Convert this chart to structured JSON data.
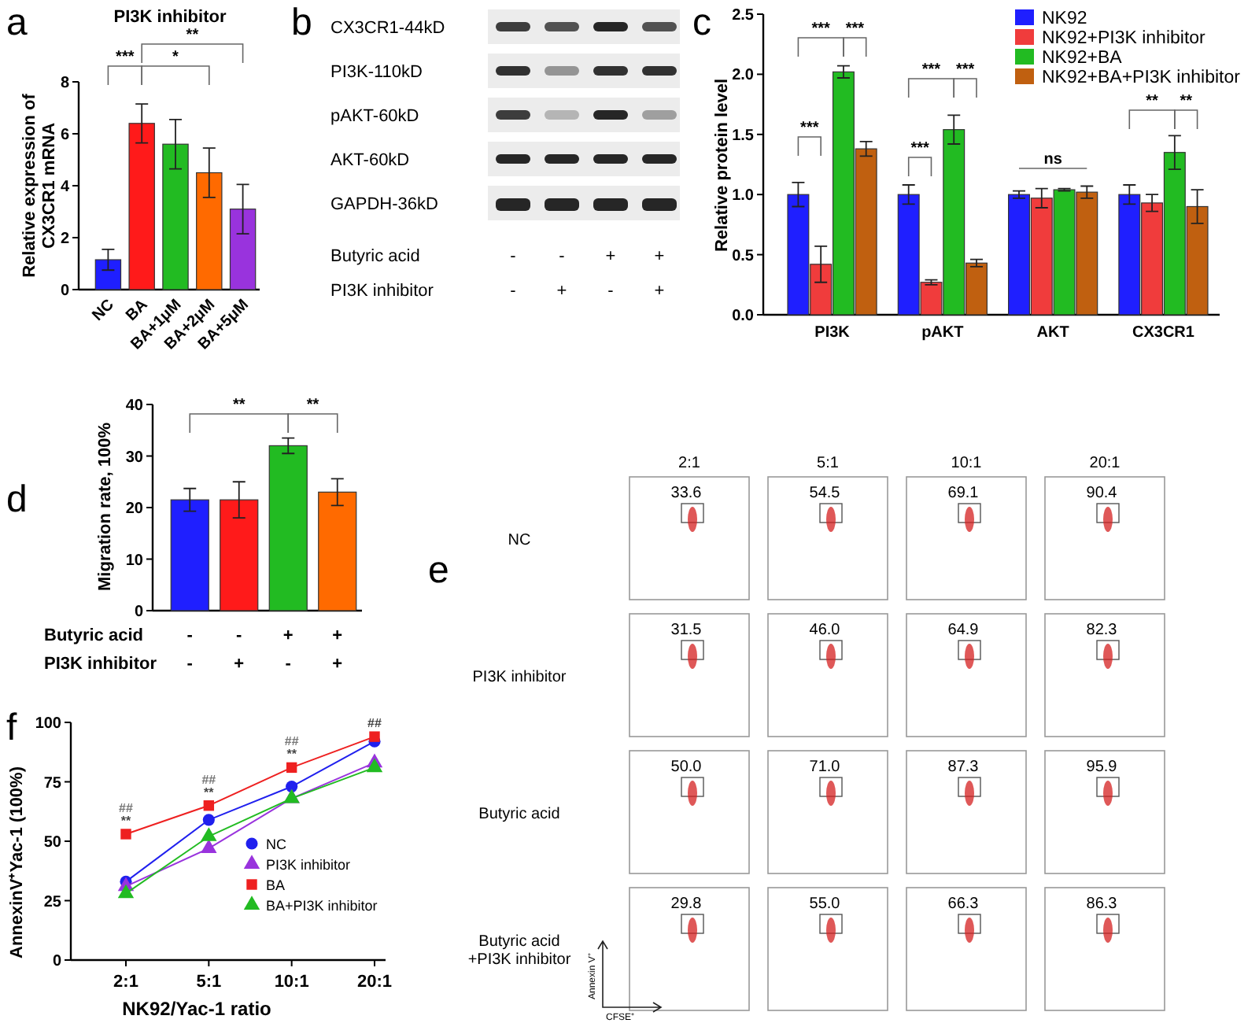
{
  "chart_data": [
    {
      "type": "bar",
      "title": "PI3K inhibitor",
      "ylabel": "Relative expression of\nCX3CR1 mRNA",
      "categories": [
        "NC",
        "BA",
        "BA+1μM",
        "BA+2μM",
        "BA+5μM"
      ],
      "values": [
        1.15,
        6.4,
        5.6,
        4.5,
        3.1
      ],
      "errors": [
        0.4,
        0.75,
        0.95,
        0.95,
        0.95
      ],
      "colors": [
        "#1f1fff",
        "#ff1a1a",
        "#22bb22",
        "#ff6a00",
        "#9933dd"
      ],
      "ylim": [
        0,
        8
      ],
      "yticks": [
        0,
        2,
        4,
        6,
        8
      ],
      "annotations": [
        "a",
        "***",
        "*",
        "**"
      ]
    },
    {
      "type": "other",
      "categories": [
        "-\n-",
        "-\n+",
        "+\n-",
        "+\n+"
      ],
      "y_categories": [
        "CX3CR1-44kD",
        "PI3K-110kD",
        "pAKT-60kD",
        "AKT-60kD",
        "GAPDH-36kD"
      ],
      "annotations": [
        "b",
        "Butyric acid",
        "PI3K inhibitor"
      ]
    },
    {
      "type": "bar",
      "ylabel": "Relative protein level",
      "categories": [
        "PI3K",
        "pAKT",
        "AKT",
        "CX3CR1"
      ],
      "series": [
        {
          "name": "NK92",
          "color": "#1f1fff",
          "values": [
            1.0,
            1.0,
            1.0,
            1.0
          ],
          "errors": [
            0.1,
            0.08,
            0.03,
            0.08
          ]
        },
        {
          "name": "NK92+PI3K inhibitor",
          "color": "#f03c3c",
          "values": [
            0.42,
            0.27,
            0.97,
            0.93
          ],
          "errors": [
            0.15,
            0.02,
            0.08,
            0.07
          ]
        },
        {
          "name": "NK92+BA",
          "color": "#22bb22",
          "values": [
            2.02,
            1.54,
            1.04,
            1.35
          ],
          "errors": [
            0.05,
            0.12,
            0.01,
            0.14
          ]
        },
        {
          "name": "NK92+BA+PI3K inhibitor",
          "color": "#c06010",
          "values": [
            1.38,
            0.43,
            1.02,
            0.9
          ],
          "errors": [
            0.06,
            0.03,
            0.05,
            0.14
          ]
        }
      ],
      "ylim": [
        0,
        2.5
      ],
      "yticks": [
        {
          "value": 0,
          "label": "0.0"
        },
        {
          "value": 0.5,
          "label": "0.5"
        },
        {
          "value": 1,
          "label": "1.0"
        },
        {
          "value": 1.5,
          "label": "1.5"
        },
        {
          "value": 2,
          "label": "2.0"
        },
        {
          "value": 2.5,
          "label": "2.5"
        }
      ],
      "legend": "top right",
      "annotations": [
        "c",
        "***",
        "***",
        "***",
        "***",
        "***",
        "***",
        "ns",
        "**",
        "**"
      ]
    },
    {
      "type": "bar",
      "ylabel": "Migration rate, 100%",
      "categories": [
        "-\n-",
        "-\n+",
        "+\n-",
        "+\n+"
      ],
      "values": [
        21.5,
        21.5,
        32,
        23
      ],
      "errors": [
        2.2,
        3.5,
        1.5,
        2.6
      ],
      "colors": [
        "#1f1fff",
        "#ff1a1a",
        "#22bb22",
        "#ff6a00"
      ],
      "ylim": [
        0,
        40
      ],
      "yticks": [
        0,
        10,
        20,
        30,
        40
      ],
      "annotations": [
        "d",
        "**",
        "**",
        "Butyric acid",
        "PI3K inhibitor"
      ]
    },
    {
      "type": "other",
      "categories": [
        "2:1",
        "5:1",
        "10:1",
        "20:1"
      ],
      "y_categories": [
        "NC",
        "PI3K inhibitor",
        "Butyric acid",
        "Butyric  acid\n+PI3K inhibitor"
      ],
      "cell_labels": [
        [
          "33.6",
          "54.5",
          "69.1",
          "90.4"
        ],
        [
          "31.5",
          "46.0",
          "64.9",
          "82.3"
        ],
        [
          "50.0",
          "71.0",
          "87.3",
          "95.9"
        ],
        [
          "29.8",
          "55.0",
          "66.3",
          "86.3"
        ]
      ],
      "xlabel": "CFSE⁺",
      "ylabel": "Annexin V⁺",
      "annotations": [
        "e"
      ]
    },
    {
      "type": "line",
      "xlabel": "NK92/Yac-1 ratio",
      "ylabel": "AnnexinV⁺Yac-1 (100%)",
      "categories": [
        "2:1",
        "5:1",
        "10:1",
        "20:1"
      ],
      "series": [
        {
          "name": "NC",
          "color": "#2020ee",
          "marker": "circle",
          "values": [
            33,
            59,
            73,
            92
          ]
        },
        {
          "name": "PI3K inhibitor",
          "color": "#9933dd",
          "marker": "triangle",
          "values": [
            31,
            47,
            68,
            83
          ]
        },
        {
          "name": "BA",
          "color": "#ee2020",
          "marker": "square",
          "values": [
            53,
            65,
            81,
            94
          ]
        },
        {
          "name": "BA+PI3K inhibitor",
          "color": "#22bb22",
          "marker": "triangle",
          "values": [
            28,
            52,
            68,
            81
          ]
        }
      ],
      "ylim": [
        0,
        100
      ],
      "yticks": [
        0,
        25,
        50,
        75,
        100
      ],
      "legend": "right",
      "annotations": [
        "f",
        {
          "text": "##\n**",
          "x": "2:1",
          "y": 53
        },
        {
          "text": "##\n**",
          "x": "5:1",
          "y": 65
        },
        {
          "text": "##\n**",
          "x": "10:1",
          "y": 81
        },
        {
          "text": "##",
          "x": "20:1",
          "y": 94
        }
      ]
    }
  ]
}
